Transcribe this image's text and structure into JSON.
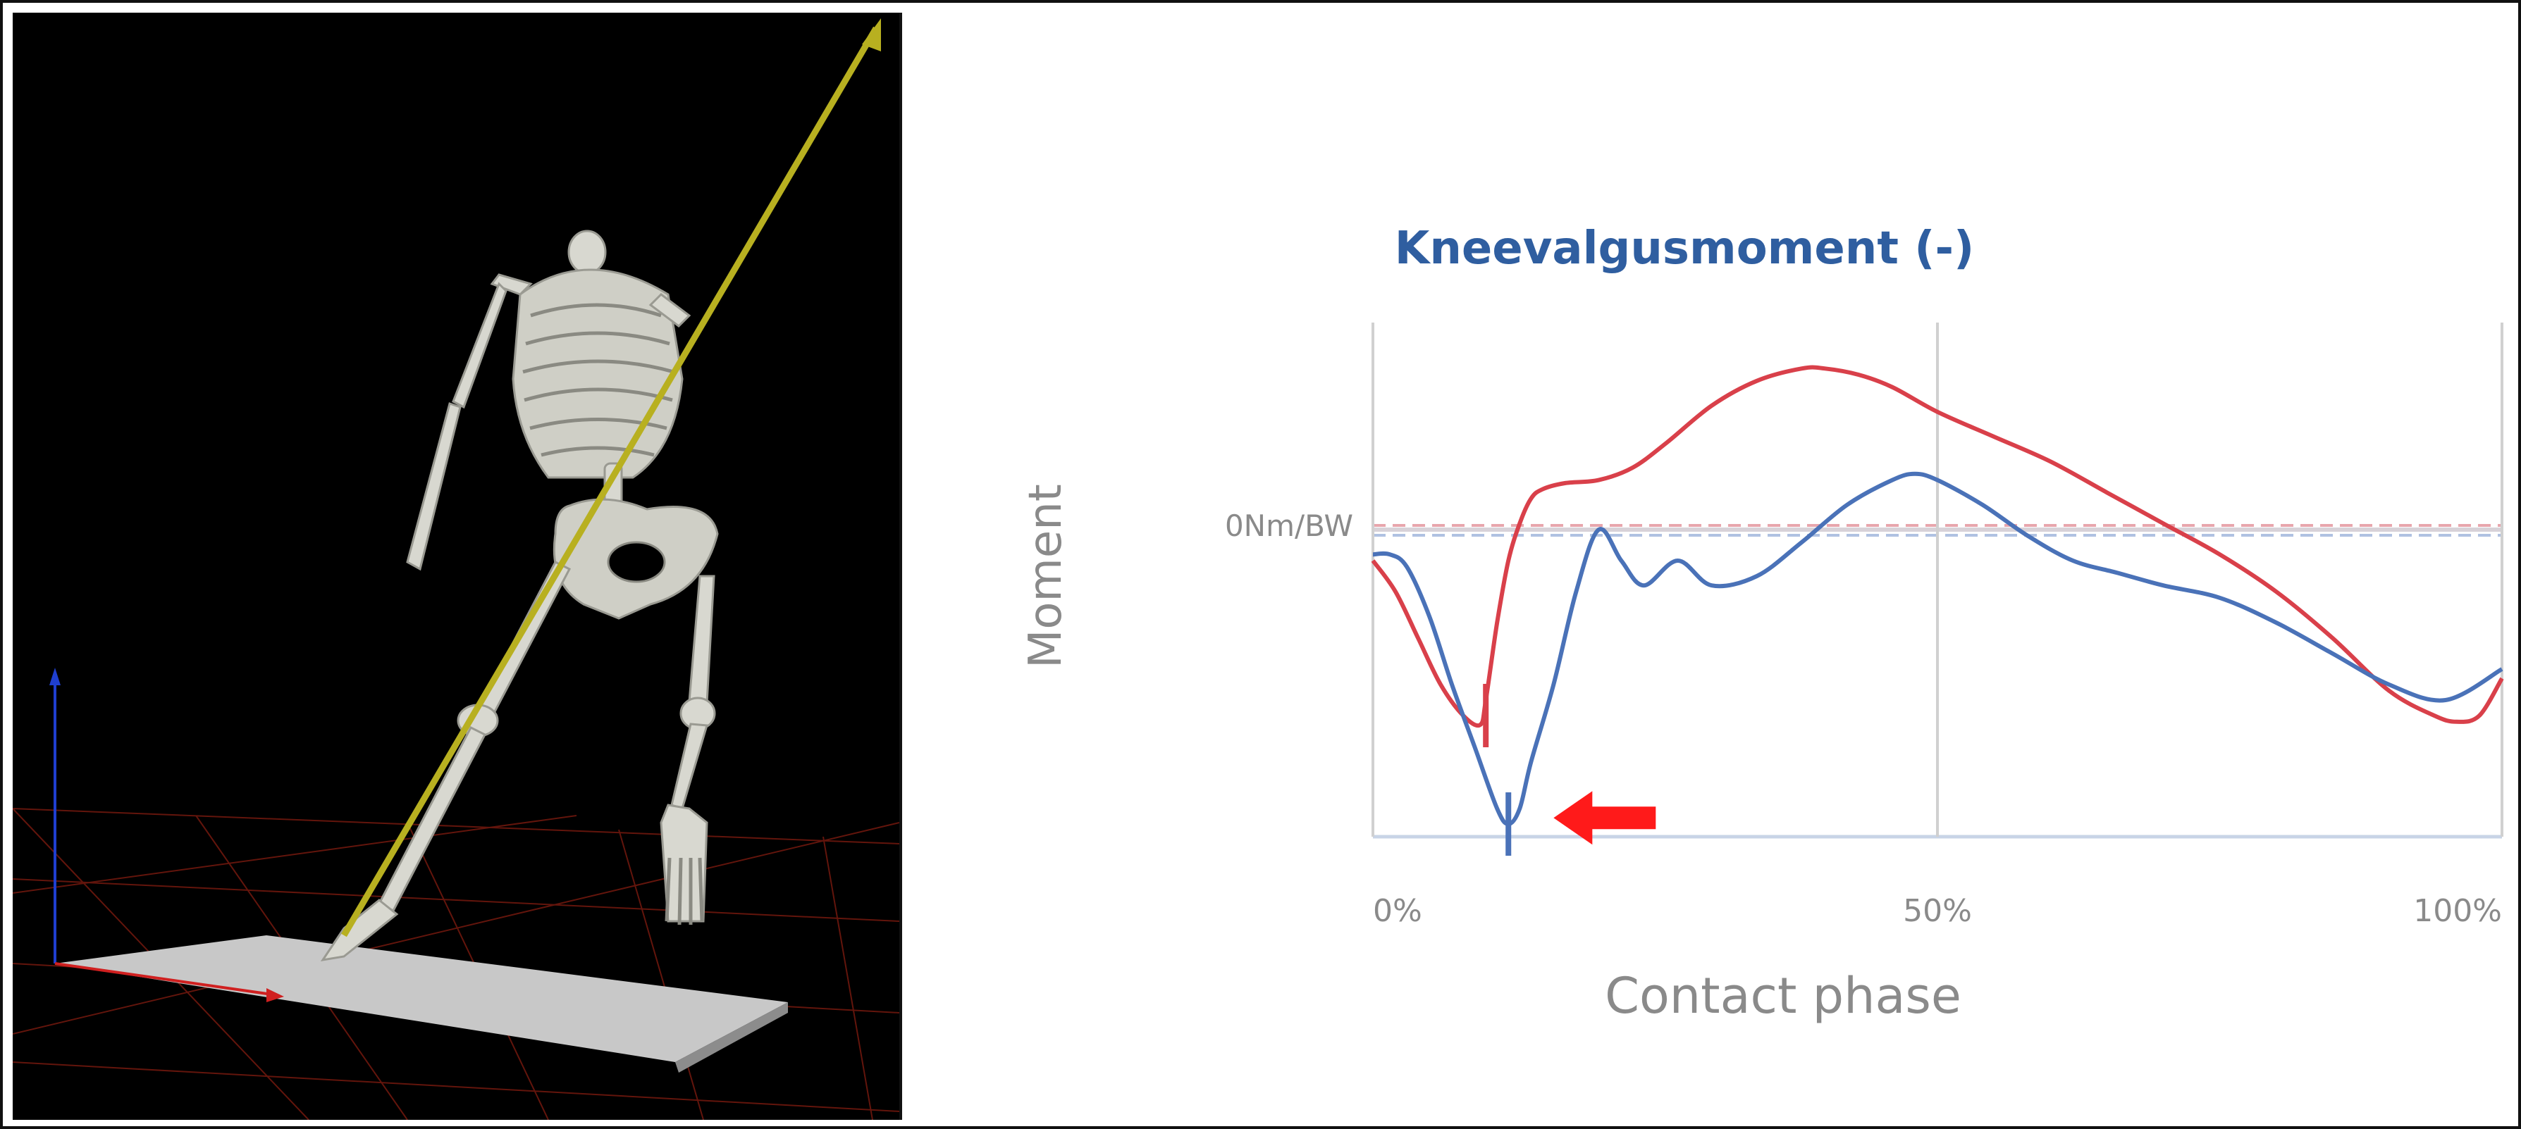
{
  "chart_data": {
    "type": "line",
    "title": "Kneevalgusmoment (-)",
    "xlabel": "Contact phase",
    "ylabel": "Moment",
    "zero_label": "0Nm/BW",
    "xticks": [
      "0%",
      "50%",
      "100%"
    ],
    "xlim": [
      0,
      100
    ],
    "ylim": [
      -1.0,
      1.0
    ],
    "grid": true,
    "legend": "none",
    "series": [
      {
        "color": "#d9404a",
        "x": [
          0,
          2,
          4,
          6,
          8,
          9.5,
          10,
          11,
          12,
          13,
          14,
          15,
          17,
          20,
          23,
          26,
          30,
          34,
          38,
          40,
          43,
          46,
          50,
          55,
          60,
          65,
          70,
          75,
          80,
          85,
          90,
          94,
          96,
          98,
          100
        ],
        "y": [
          -0.1,
          -0.2,
          -0.35,
          -0.5,
          -0.6,
          -0.63,
          -0.55,
          -0.3,
          -0.1,
          0.02,
          0.1,
          0.13,
          0.15,
          0.16,
          0.2,
          0.28,
          0.4,
          0.48,
          0.52,
          0.52,
          0.5,
          0.46,
          0.38,
          0.3,
          0.22,
          0.12,
          0.02,
          -0.08,
          -0.2,
          -0.35,
          -0.52,
          -0.6,
          -0.62,
          -0.6,
          -0.48
        ]
      },
      {
        "color": "#4a72b8",
        "x": [
          0,
          1.5,
          3,
          5,
          7,
          9,
          11,
          12,
          13,
          14,
          16,
          18,
          20,
          22,
          24,
          27,
          30,
          34,
          38,
          42,
          46,
          48,
          50,
          54,
          58,
          62,
          66,
          70,
          75,
          80,
          85,
          90,
          95,
          100
        ],
        "y": [
          -0.08,
          -0.08,
          -0.12,
          -0.28,
          -0.5,
          -0.7,
          -0.9,
          -0.95,
          -0.9,
          -0.75,
          -0.5,
          -0.2,
          0.0,
          -0.1,
          -0.18,
          -0.1,
          -0.18,
          -0.15,
          -0.04,
          0.08,
          0.16,
          0.18,
          0.16,
          0.08,
          -0.02,
          -0.1,
          -0.14,
          -0.18,
          -0.22,
          -0.3,
          -0.4,
          -0.5,
          -0.55,
          -0.45
        ]
      }
    ],
    "markers": [
      {
        "x": 10,
        "y": -0.6,
        "color": "#d9404a"
      },
      {
        "x": 12,
        "y": -0.95,
        "color": "#4a72b8"
      }
    ],
    "annotations": [
      {
        "type": "arrow",
        "x": 16,
        "y": -0.93,
        "color": "#ff1a1a",
        "direction": "left"
      }
    ]
  },
  "scene": {
    "background": "#000000",
    "bone_color": "#d8d8d0",
    "vector_color": "#b8b020",
    "floor_color": "#c8c8c8",
    "grid_color": "#7a1a10"
  }
}
